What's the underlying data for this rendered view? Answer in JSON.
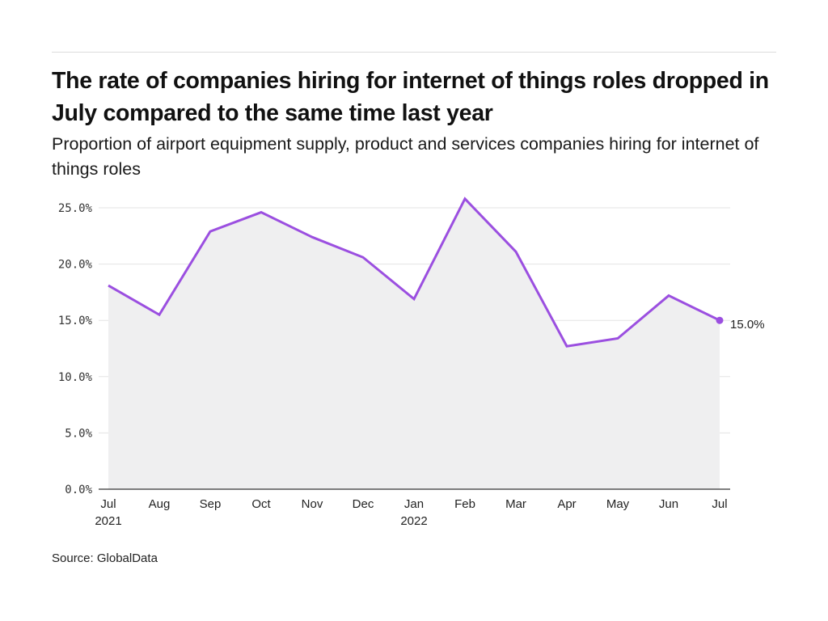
{
  "header": {
    "title": "The rate of companies hiring for internet of things roles dropped in July compared to the same time last year",
    "subtitle": "Proportion of airport equipment supply, product and services companies hiring for internet of things roles"
  },
  "footer": {
    "source": "Source: GlobalData"
  },
  "colors": {
    "line": "#9b4fe0",
    "area": "#efeff0",
    "grid": "#e3e3e3",
    "axis": "#333333"
  },
  "chart_data": {
    "type": "area",
    "title": "The rate of companies hiring for internet of things roles dropped in July compared to the same time last year",
    "subtitle": "Proportion of airport equipment supply, product and services companies hiring for internet of things roles",
    "xlabel": "",
    "ylabel": "",
    "categories": [
      "Jul",
      "Aug",
      "Sep",
      "Oct",
      "Nov",
      "Dec",
      "Jan",
      "Feb",
      "Mar",
      "Apr",
      "May",
      "Jun",
      "Jul"
    ],
    "category_sublabels": [
      "2021",
      "",
      "",
      "",
      "",
      "",
      "2022",
      "",
      "",
      "",
      "",
      "",
      ""
    ],
    "series": [
      {
        "name": "Proportion of companies hiring for internet of things roles",
        "values": [
          18.1,
          15.5,
          22.9,
          24.6,
          22.4,
          20.6,
          16.9,
          25.8,
          21.1,
          12.7,
          13.4,
          17.2,
          15.0
        ]
      }
    ],
    "ylim": [
      0,
      25
    ],
    "yticks": [
      0,
      5,
      10,
      15,
      20,
      25
    ],
    "ytick_labels": [
      "0.0%",
      "5.0%",
      "10.0%",
      "15.0%",
      "20.0%",
      "25.0%"
    ],
    "end_label": "15.0%",
    "grid": true,
    "legend": "none",
    "source": "Source: GlobalData"
  }
}
